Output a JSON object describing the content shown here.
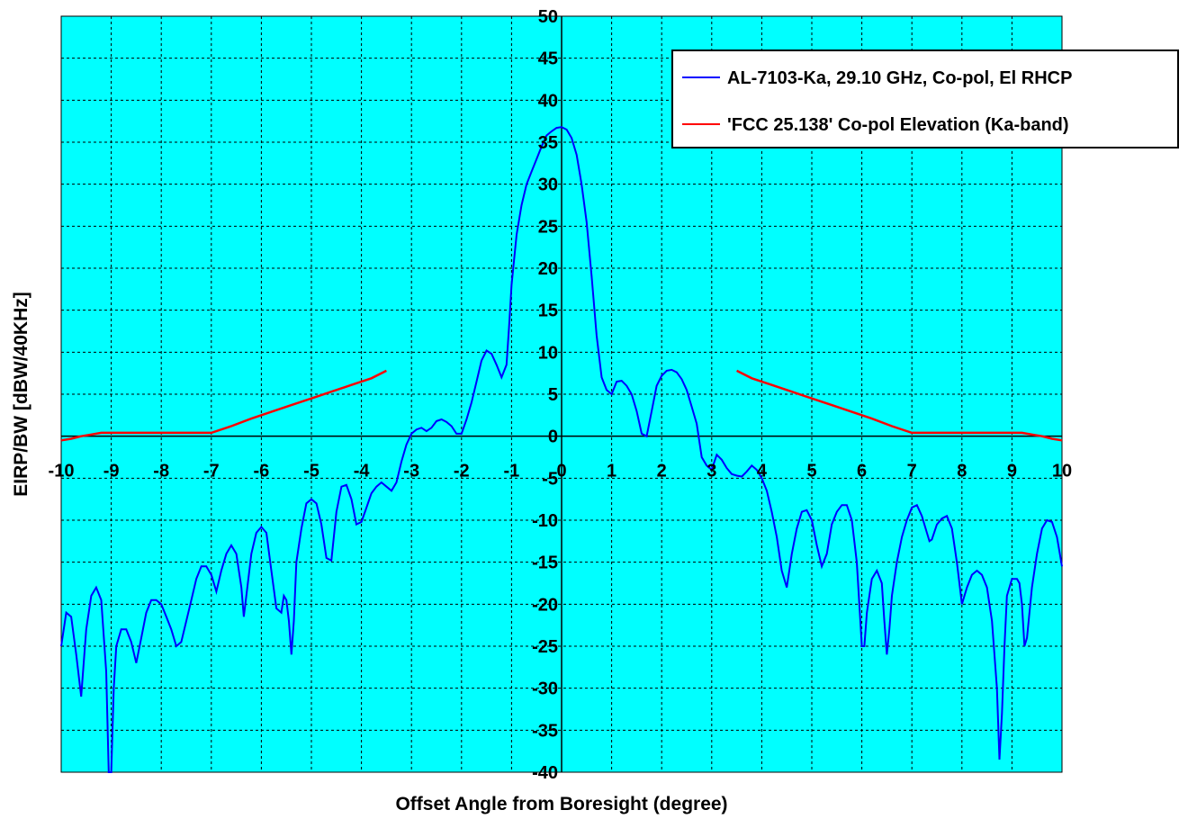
{
  "chart_data": {
    "type": "line",
    "title": "",
    "xlabel": "Offset Angle from Boresight (degree)",
    "ylabel": "EIRP/BW [dBW/40KHz]",
    "xlim": [
      -10,
      10
    ],
    "ylim": [
      -40,
      50
    ],
    "x_ticks": [
      "-10",
      "-9",
      "-8",
      "-7",
      "-6",
      "-5",
      "-4",
      "-3",
      "-2",
      "-1",
      "0",
      "1",
      "2",
      "3",
      "4",
      "5",
      "6",
      "7",
      "8",
      "9",
      "10"
    ],
    "y_ticks": [
      "50",
      "45",
      "40",
      "35",
      "30",
      "25",
      "20",
      "15",
      "10",
      "5",
      "0",
      "-5",
      "-10",
      "-15",
      "-20",
      "-25",
      "-30",
      "-35",
      "-40"
    ],
    "grid": true,
    "plot_background": "#00FFFF",
    "legend_position": "top-right",
    "series": [
      {
        "name": "AL-7103-Ka, 29.10 GHz, Co-pol, El RHCP",
        "color": "#0000FF",
        "points": [
          [
            -10,
            -25
          ],
          [
            -9.9,
            -21
          ],
          [
            -9.8,
            -21.5
          ],
          [
            -9.7,
            -26
          ],
          [
            -9.6,
            -31
          ],
          [
            -9.5,
            -23
          ],
          [
            -9.4,
            -19
          ],
          [
            -9.3,
            -18
          ],
          [
            -9.2,
            -19.5
          ],
          [
            -9.1,
            -28
          ],
          [
            -9.05,
            -40
          ],
          [
            -9.0,
            -40
          ],
          [
            -8.95,
            -30
          ],
          [
            -8.9,
            -25
          ],
          [
            -8.8,
            -23
          ],
          [
            -8.7,
            -23
          ],
          [
            -8.6,
            -24.5
          ],
          [
            -8.5,
            -27
          ],
          [
            -8.4,
            -24
          ],
          [
            -8.3,
            -21
          ],
          [
            -8.2,
            -19.5
          ],
          [
            -8.1,
            -19.5
          ],
          [
            -8.0,
            -20
          ],
          [
            -7.9,
            -21.5
          ],
          [
            -7.8,
            -23
          ],
          [
            -7.7,
            -25
          ],
          [
            -7.6,
            -24.5
          ],
          [
            -7.5,
            -22
          ],
          [
            -7.4,
            -19.5
          ],
          [
            -7.3,
            -17
          ],
          [
            -7.2,
            -15.5
          ],
          [
            -7.1,
            -15.5
          ],
          [
            -7.0,
            -16.5
          ],
          [
            -6.9,
            -18.5
          ],
          [
            -6.8,
            -16
          ],
          [
            -6.7,
            -14
          ],
          [
            -6.6,
            -13
          ],
          [
            -6.5,
            -14
          ],
          [
            -6.4,
            -18
          ],
          [
            -6.35,
            -21.5
          ],
          [
            -6.3,
            -19
          ],
          [
            -6.2,
            -14
          ],
          [
            -6.1,
            -11.5
          ],
          [
            -6.0,
            -10.8
          ],
          [
            -5.9,
            -11.5
          ],
          [
            -5.8,
            -16
          ],
          [
            -5.7,
            -20.5
          ],
          [
            -5.6,
            -21
          ],
          [
            -5.55,
            -19
          ],
          [
            -5.5,
            -19.5
          ],
          [
            -5.45,
            -22
          ],
          [
            -5.4,
            -26
          ],
          [
            -5.35,
            -22
          ],
          [
            -5.3,
            -15
          ],
          [
            -5.2,
            -11
          ],
          [
            -5.1,
            -8
          ],
          [
            -5.0,
            -7.5
          ],
          [
            -4.9,
            -8
          ],
          [
            -4.8,
            -10.5
          ],
          [
            -4.7,
            -14.5
          ],
          [
            -4.6,
            -14.8
          ],
          [
            -4.5,
            -9
          ],
          [
            -4.4,
            -6
          ],
          [
            -4.3,
            -5.8
          ],
          [
            -4.2,
            -7.5
          ],
          [
            -4.1,
            -10.5
          ],
          [
            -4.0,
            -10.2
          ],
          [
            -3.9,
            -8.5
          ],
          [
            -3.8,
            -6.8
          ],
          [
            -3.7,
            -6
          ],
          [
            -3.6,
            -5.5
          ],
          [
            -3.5,
            -6
          ],
          [
            -3.4,
            -6.5
          ],
          [
            -3.3,
            -5.5
          ],
          [
            -3.2,
            -3
          ],
          [
            -3.1,
            -1
          ],
          [
            -3.0,
            0.3
          ],
          [
            -2.9,
            0.8
          ],
          [
            -2.8,
            1.0
          ],
          [
            -2.7,
            0.6
          ],
          [
            -2.6,
            1.0
          ],
          [
            -2.5,
            1.8
          ],
          [
            -2.4,
            2.0
          ],
          [
            -2.3,
            1.7
          ],
          [
            -2.2,
            1.2
          ],
          [
            -2.1,
            0.3
          ],
          [
            -2.0,
            0.3
          ],
          [
            -1.9,
            2.0
          ],
          [
            -1.8,
            4.0
          ],
          [
            -1.7,
            6.5
          ],
          [
            -1.6,
            9.0
          ],
          [
            -1.5,
            10.2
          ],
          [
            -1.4,
            9.8
          ],
          [
            -1.3,
            8.5
          ],
          [
            -1.2,
            7.0
          ],
          [
            -1.1,
            8.5
          ],
          [
            -1.05,
            13
          ],
          [
            -1.0,
            18
          ],
          [
            -0.9,
            24
          ],
          [
            -0.8,
            27.5
          ],
          [
            -0.7,
            30
          ],
          [
            -0.6,
            31.5
          ],
          [
            -0.5,
            33
          ],
          [
            -0.4,
            34.5
          ],
          [
            -0.3,
            35.8
          ],
          [
            -0.2,
            36.3
          ],
          [
            -0.1,
            36.7
          ],
          [
            0.0,
            36.8
          ],
          [
            0.1,
            36.5
          ],
          [
            0.2,
            35.5
          ],
          [
            0.3,
            33.5
          ],
          [
            0.4,
            30
          ],
          [
            0.5,
            25.5
          ],
          [
            0.6,
            19
          ],
          [
            0.7,
            12
          ],
          [
            0.8,
            7
          ],
          [
            0.9,
            5.5
          ],
          [
            1.0,
            5.0
          ],
          [
            1.1,
            6.5
          ],
          [
            1.2,
            6.6
          ],
          [
            1.3,
            6.0
          ],
          [
            1.4,
            5.0
          ],
          [
            1.5,
            3.0
          ],
          [
            1.6,
            0.3
          ],
          [
            1.7,
            0.0
          ],
          [
            1.8,
            3.0
          ],
          [
            1.9,
            6.0
          ],
          [
            2.0,
            7.2
          ],
          [
            2.1,
            7.8
          ],
          [
            2.2,
            7.9
          ],
          [
            2.3,
            7.6
          ],
          [
            2.4,
            6.8
          ],
          [
            2.5,
            5.5
          ],
          [
            2.6,
            3.5
          ],
          [
            2.7,
            1.5
          ],
          [
            2.8,
            -2.5
          ],
          [
            2.9,
            -3.5
          ],
          [
            3.0,
            -4.0
          ],
          [
            3.1,
            -2.2
          ],
          [
            3.2,
            -2.8
          ],
          [
            3.3,
            -3.8
          ],
          [
            3.4,
            -4.5
          ],
          [
            3.5,
            -4.7
          ],
          [
            3.6,
            -4.8
          ],
          [
            3.7,
            -4.2
          ],
          [
            3.8,
            -3.5
          ],
          [
            3.9,
            -4.0
          ],
          [
            4.0,
            -5.0
          ],
          [
            4.1,
            -6.5
          ],
          [
            4.2,
            -9
          ],
          [
            4.3,
            -12
          ],
          [
            4.4,
            -16
          ],
          [
            4.5,
            -18
          ],
          [
            4.6,
            -14
          ],
          [
            4.7,
            -11
          ],
          [
            4.8,
            -9
          ],
          [
            4.9,
            -8.8
          ],
          [
            5.0,
            -10
          ],
          [
            5.1,
            -13
          ],
          [
            5.2,
            -15.5
          ],
          [
            5.3,
            -14
          ],
          [
            5.4,
            -10.5
          ],
          [
            5.5,
            -9
          ],
          [
            5.6,
            -8.2
          ],
          [
            5.7,
            -8.2
          ],
          [
            5.8,
            -10
          ],
          [
            5.9,
            -15
          ],
          [
            6.0,
            -25
          ],
          [
            6.05,
            -25
          ],
          [
            6.1,
            -21
          ],
          [
            6.2,
            -17
          ],
          [
            6.3,
            -16
          ],
          [
            6.4,
            -17.5
          ],
          [
            6.45,
            -22
          ],
          [
            6.5,
            -26
          ],
          [
            6.55,
            -23
          ],
          [
            6.6,
            -19
          ],
          [
            6.7,
            -15
          ],
          [
            6.8,
            -12
          ],
          [
            6.9,
            -10
          ],
          [
            7.0,
            -8.5
          ],
          [
            7.1,
            -8.2
          ],
          [
            7.2,
            -9.5
          ],
          [
            7.3,
            -11.5
          ],
          [
            7.35,
            -12.5
          ],
          [
            7.4,
            -12.3
          ],
          [
            7.5,
            -10.5
          ],
          [
            7.6,
            -9.8
          ],
          [
            7.7,
            -9.5
          ],
          [
            7.8,
            -11
          ],
          [
            7.9,
            -15
          ],
          [
            8.0,
            -20
          ],
          [
            8.1,
            -18
          ],
          [
            8.2,
            -16.5
          ],
          [
            8.3,
            -16
          ],
          [
            8.4,
            -16.5
          ],
          [
            8.5,
            -18
          ],
          [
            8.6,
            -22
          ],
          [
            8.7,
            -30
          ],
          [
            8.75,
            -38.5
          ],
          [
            8.8,
            -33
          ],
          [
            8.85,
            -25
          ],
          [
            8.9,
            -19
          ],
          [
            9.0,
            -17
          ],
          [
            9.1,
            -17
          ],
          [
            9.15,
            -17.5
          ],
          [
            9.2,
            -20
          ],
          [
            9.25,
            -25
          ],
          [
            9.3,
            -24
          ],
          [
            9.4,
            -18
          ],
          [
            9.5,
            -14
          ],
          [
            9.6,
            -11
          ],
          [
            9.7,
            -10
          ],
          [
            9.8,
            -10.2
          ],
          [
            9.9,
            -12
          ],
          [
            10.0,
            -15.5
          ]
        ]
      },
      {
        "name": "'FCC 25.138' Co-pol Elevation (Ka-band)",
        "color": "#FF0000",
        "segments": [
          [
            [
              -10,
              -0.5
            ],
            [
              -9.8,
              -0.3
            ],
            [
              -9.6,
              0.0
            ],
            [
              -9.4,
              0.2
            ],
            [
              -9.2,
              0.4
            ],
            [
              -9.0,
              0.4
            ],
            [
              -8.0,
              0.4
            ],
            [
              -7.0,
              0.4
            ],
            [
              -6.6,
              1.2
            ],
            [
              -6.2,
              2.1
            ],
            [
              -5.8,
              2.9
            ],
            [
              -5.4,
              3.7
            ],
            [
              -5.0,
              4.5
            ],
            [
              -4.6,
              5.3
            ],
            [
              -4.2,
              6.1
            ],
            [
              -3.8,
              6.9
            ],
            [
              -3.5,
              7.8
            ]
          ],
          [
            [
              3.5,
              7.8
            ],
            [
              3.8,
              6.9
            ],
            [
              4.2,
              6.1
            ],
            [
              4.6,
              5.3
            ],
            [
              5.0,
              4.5
            ],
            [
              5.4,
              3.7
            ],
            [
              5.8,
              2.9
            ],
            [
              6.2,
              2.1
            ],
            [
              6.6,
              1.2
            ],
            [
              7.0,
              0.4
            ],
            [
              8.0,
              0.4
            ],
            [
              9.0,
              0.4
            ],
            [
              9.2,
              0.4
            ],
            [
              9.4,
              0.2
            ],
            [
              9.6,
              0.0
            ],
            [
              9.8,
              -0.3
            ],
            [
              10,
              -0.5
            ]
          ]
        ]
      }
    ]
  }
}
